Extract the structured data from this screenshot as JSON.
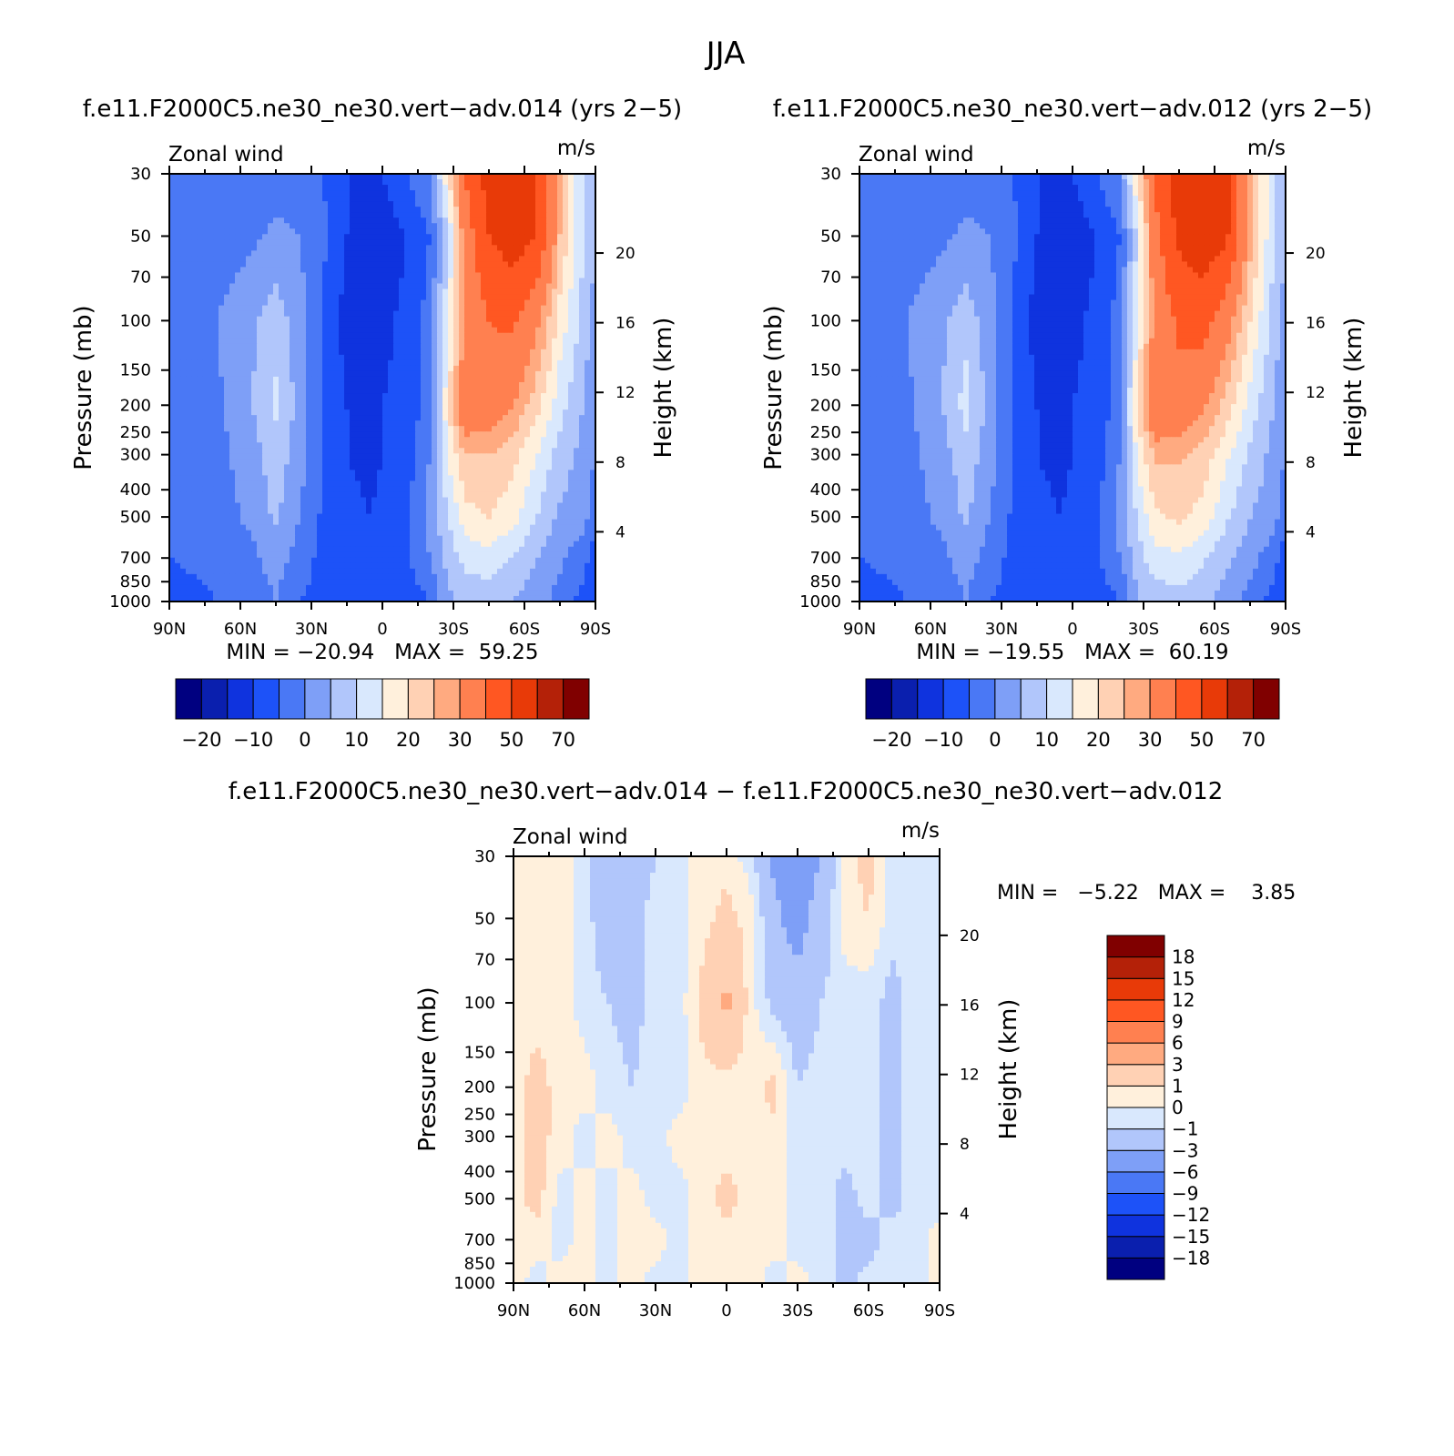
{
  "figure_title": "JJA",
  "chart_data": [
    {
      "type": "contour",
      "title": "f.e11.F2000C5.ne30_ne30.vert−adv.014 (yrs 2−5)",
      "left_string": "Zonal wind",
      "right_string": "m/s",
      "xlabel": "",
      "ylabel": "Pressure (mb)",
      "ylabel_right": "Height (km)",
      "x_ticks": [
        "90N",
        "60N",
        "30N",
        "0",
        "30S",
        "60S",
        "90S"
      ],
      "y_ticks": [
        30,
        50,
        70,
        100,
        150,
        200,
        250,
        300,
        400,
        500,
        700,
        850,
        1000
      ],
      "y_ticks_right": [
        4,
        8,
        12,
        16,
        20
      ],
      "ylim": [
        1000,
        30
      ],
      "y_scale": "log",
      "stats": "MIN = −20.94   MAX =  59.25",
      "min": -20.94,
      "max": 59.25,
      "field": {
        "lats": [
          90,
          70,
          55,
          45,
          35,
          25,
          15,
          5,
          0,
          -10,
          -20,
          -28,
          -35,
          -45,
          -55,
          -65,
          -75,
          -85,
          -90
        ],
        "levels": [
          30,
          50,
          100,
          200,
          300,
          500,
          700,
          1000
        ],
        "values": [
          [
            -5,
            -5,
            -3,
            -2,
            -2,
            -5,
            -10,
            -10,
            -10,
            -5,
            0,
            20,
            40,
            55,
            59,
            50,
            25,
            10,
            5
          ],
          [
            -5,
            -3,
            -1,
            1,
            0,
            -4,
            -10,
            -14,
            -13,
            -10,
            -5,
            10,
            35,
            50,
            55,
            50,
            25,
            10,
            5
          ],
          [
            -5,
            0,
            4,
            8,
            2,
            -6,
            -12,
            -12,
            -11,
            -9,
            -3,
            15,
            30,
            40,
            42,
            32,
            18,
            8,
            3
          ],
          [
            -5,
            -1,
            5,
            11,
            3,
            -6,
            -10,
            -11,
            -10,
            -9,
            -2,
            20,
            38,
            35,
            30,
            22,
            12,
            5,
            0
          ],
          [
            -5,
            -2,
            3,
            8,
            2,
            -5,
            -10,
            -11,
            -10,
            -8,
            0,
            16,
            25,
            25,
            22,
            15,
            8,
            3,
            0
          ],
          [
            -5,
            -2,
            1,
            6,
            0,
            -6,
            -9,
            -10,
            -9,
            -6,
            2,
            10,
            18,
            20,
            17,
            10,
            4,
            2,
            -3
          ],
          [
            -5,
            -3,
            -1,
            2,
            -2,
            -7,
            -7,
            -8,
            -8,
            -6,
            0,
            7,
            12,
            13,
            10,
            5,
            1,
            -3,
            -8
          ],
          [
            -8,
            -5,
            -3,
            0,
            -5,
            -7,
            -6,
            -8,
            -9,
            -8,
            -5,
            4,
            6,
            7,
            5,
            2,
            -2,
            -7,
            -10
          ]
        ]
      },
      "colorbar": {
        "orientation": "horizontal",
        "labels": [
          "−20",
          "−10",
          "0",
          "10",
          "20",
          "30",
          "50",
          "70"
        ],
        "levels": [
          -25,
          -20,
          -15,
          -10,
          -5,
          0,
          5,
          10,
          15,
          20,
          25,
          30,
          40,
          50,
          60,
          70,
          80
        ],
        "colors": [
          "#000080",
          "#0a1fae",
          "#0f33de",
          "#1d52f8",
          "#4a78f5",
          "#7e9ff7",
          "#b1c6fb",
          "#d9e8fd",
          "#fff0dc",
          "#ffd1b4",
          "#ffaa80",
          "#ff8050",
          "#ff5722",
          "#e83a08",
          "#b42108",
          "#800000"
        ]
      }
    },
    {
      "type": "contour",
      "title": "f.e11.F2000C5.ne30_ne30.vert−adv.012 (yrs 2−5)",
      "left_string": "Zonal wind",
      "right_string": "m/s",
      "xlabel": "",
      "ylabel": "Pressure (mb)",
      "ylabel_right": "Height (km)",
      "x_ticks": [
        "90N",
        "60N",
        "30N",
        "0",
        "30S",
        "60S",
        "90S"
      ],
      "y_ticks": [
        30,
        50,
        70,
        100,
        150,
        200,
        250,
        300,
        400,
        500,
        700,
        850,
        1000
      ],
      "y_ticks_right": [
        4,
        8,
        12,
        16,
        20
      ],
      "ylim": [
        1000,
        30
      ],
      "y_scale": "log",
      "stats": "MIN = −19.55   MAX =  60.19",
      "min": -19.55,
      "max": 60.19,
      "field": {
        "lats": [
          90,
          70,
          55,
          45,
          35,
          25,
          15,
          5,
          0,
          -10,
          -20,
          -28,
          -35,
          -45,
          -55,
          -65,
          -75,
          -85,
          -90
        ],
        "levels": [
          30,
          50,
          100,
          200,
          300,
          500,
          700,
          1000
        ],
        "values": [
          [
            -5,
            -5,
            -3,
            -2,
            -2,
            -5,
            -10,
            -10,
            -10,
            -5,
            0,
            22,
            42,
            57,
            60,
            52,
            27,
            10,
            5
          ],
          [
            -5,
            -3,
            -1,
            1,
            0,
            -4,
            -10,
            -14,
            -13,
            -10,
            -5,
            12,
            37,
            52,
            56,
            52,
            27,
            10,
            5
          ],
          [
            -5,
            0,
            4,
            8,
            2,
            -6,
            -12,
            -12,
            -11,
            -9,
            -3,
            16,
            32,
            42,
            44,
            34,
            20,
            8,
            3
          ],
          [
            -5,
            -1,
            5,
            12,
            3,
            -6,
            -10,
            -11,
            -10,
            -9,
            -2,
            22,
            40,
            36,
            31,
            23,
            13,
            5,
            0
          ],
          [
            -5,
            -2,
            3,
            8,
            2,
            -5,
            -10,
            -11,
            -10,
            -8,
            0,
            17,
            26,
            26,
            23,
            16,
            9,
            3,
            0
          ],
          [
            -5,
            -2,
            1,
            6,
            0,
            -6,
            -9,
            -10,
            -9,
            -6,
            2,
            11,
            19,
            21,
            18,
            11,
            5,
            2,
            -3
          ],
          [
            -5,
            -3,
            -1,
            2,
            -2,
            -7,
            -7,
            -8,
            -8,
            -6,
            0,
            8,
            13,
            14,
            11,
            6,
            2,
            -3,
            -8
          ],
          [
            -8,
            -5,
            -3,
            0,
            -5,
            -7,
            -6,
            -8,
            -9,
            -8,
            -5,
            5,
            7,
            8,
            6,
            3,
            -2,
            -7,
            -10
          ]
        ]
      },
      "colorbar": {
        "orientation": "horizontal",
        "labels": [
          "−20",
          "−10",
          "0",
          "10",
          "20",
          "30",
          "50",
          "70"
        ],
        "levels": [
          -25,
          -20,
          -15,
          -10,
          -5,
          0,
          5,
          10,
          15,
          20,
          25,
          30,
          40,
          50,
          60,
          70,
          80
        ],
        "colors": [
          "#000080",
          "#0a1fae",
          "#0f33de",
          "#1d52f8",
          "#4a78f5",
          "#7e9ff7",
          "#b1c6fb",
          "#d9e8fd",
          "#fff0dc",
          "#ffd1b4",
          "#ffaa80",
          "#ff8050",
          "#ff5722",
          "#e83a08",
          "#b42108",
          "#800000"
        ]
      }
    },
    {
      "type": "contour",
      "title": "f.e11.F2000C5.ne30_ne30.vert−adv.014 − f.e11.F2000C5.ne30_ne30.vert−adv.012",
      "left_string": "Zonal wind",
      "right_string": "m/s",
      "xlabel": "",
      "ylabel": "Pressure (mb)",
      "ylabel_right": "Height (km)",
      "x_ticks": [
        "90N",
        "60N",
        "30N",
        "0",
        "30S",
        "60S",
        "90S"
      ],
      "y_ticks": [
        30,
        50,
        70,
        100,
        150,
        200,
        250,
        300,
        400,
        500,
        700,
        850,
        1000
      ],
      "y_ticks_right": [
        4,
        8,
        12,
        16,
        20
      ],
      "ylim": [
        1000,
        30
      ],
      "y_scale": "log",
      "stats": "MIN =   −5.22   MAX =    3.85",
      "min": -5.22,
      "max": 3.85,
      "field": {
        "lats": [
          90,
          80,
          70,
          60,
          50,
          40,
          30,
          20,
          10,
          0,
          -10,
          -20,
          -30,
          -40,
          -50,
          -60,
          -70,
          -80,
          -90
        ],
        "levels": [
          30,
          50,
          100,
          200,
          300,
          500,
          700,
          1000
        ],
        "values": [
          [
            0.5,
            0.5,
            0.5,
            -0.5,
            -2.0,
            -2.0,
            -1.0,
            -0.5,
            0.5,
            0.5,
            -0.5,
            -3.5,
            -4.0,
            -3.0,
            0.5,
            1.5,
            -0.5,
            -0.5,
            -0.5
          ],
          [
            0.5,
            0.5,
            0.5,
            -0.5,
            -2.0,
            -1.5,
            -0.5,
            -0.5,
            0.5,
            1.5,
            0.5,
            -2.5,
            -4.0,
            -2.0,
            0.5,
            1.0,
            -0.5,
            -0.5,
            -0.5
          ],
          [
            0.5,
            0.5,
            0.5,
            -0.5,
            -1.0,
            -1.5,
            -0.5,
            -0.5,
            1.5,
            3.5,
            0.5,
            -1.5,
            -2.0,
            -1.0,
            -0.5,
            -0.5,
            -1.5,
            -0.5,
            -0.5
          ],
          [
            0.5,
            1.5,
            0.5,
            0.5,
            -0.5,
            -1.0,
            -0.5,
            -0.5,
            0.5,
            0.5,
            0.5,
            1.5,
            -1.0,
            -0.5,
            -0.5,
            -0.5,
            -1.5,
            -0.5,
            -0.5
          ],
          [
            0.5,
            1.5,
            0.5,
            -0.5,
            0.5,
            -0.5,
            -0.5,
            0.5,
            0.5,
            0.5,
            0.5,
            0.5,
            -0.5,
            -0.5,
            -0.5,
            -0.5,
            -1.5,
            -0.5,
            -0.5
          ],
          [
            0.5,
            1.5,
            -0.5,
            0.5,
            -0.5,
            0.5,
            -0.5,
            -0.5,
            0.5,
            1.5,
            0.5,
            0.5,
            -0.5,
            -0.5,
            -1.5,
            -0.5,
            -1.5,
            -0.5,
            -0.5
          ],
          [
            0.5,
            0.5,
            -0.5,
            0.5,
            -0.5,
            0.5,
            0.5,
            -0.5,
            0.5,
            0.5,
            0.5,
            0.5,
            -0.5,
            -0.5,
            -1.5,
            -1.5,
            -0.5,
            -0.5,
            0.5
          ],
          [
            0.5,
            -0.5,
            0.5,
            0.5,
            -0.5,
            0.5,
            -0.5,
            -0.5,
            0.5,
            0.5,
            0.5,
            -0.5,
            0.5,
            -0.5,
            -1.5,
            -0.5,
            -0.5,
            -0.5,
            0.5
          ]
        ]
      },
      "colorbar": {
        "orientation": "vertical",
        "labels": [
          "18",
          "15",
          "12",
          "9",
          "6",
          "3",
          "1",
          "0",
          "−1",
          "−3",
          "−6",
          "−9",
          "−12",
          "−15",
          "−18"
        ],
        "levels": [
          -21,
          -18,
          -15,
          -12,
          -9,
          -6,
          -3,
          -1,
          0,
          1,
          3,
          6,
          9,
          12,
          15,
          18,
          21
        ],
        "colors": [
          "#000080",
          "#0a1fae",
          "#0f33de",
          "#1d52f8",
          "#4a78f5",
          "#7e9ff7",
          "#b1c6fb",
          "#d9e8fd",
          "#fff0dc",
          "#ffd1b4",
          "#ffaa80",
          "#ff8050",
          "#ff5722",
          "#e83a08",
          "#b42108",
          "#800000"
        ]
      }
    }
  ]
}
